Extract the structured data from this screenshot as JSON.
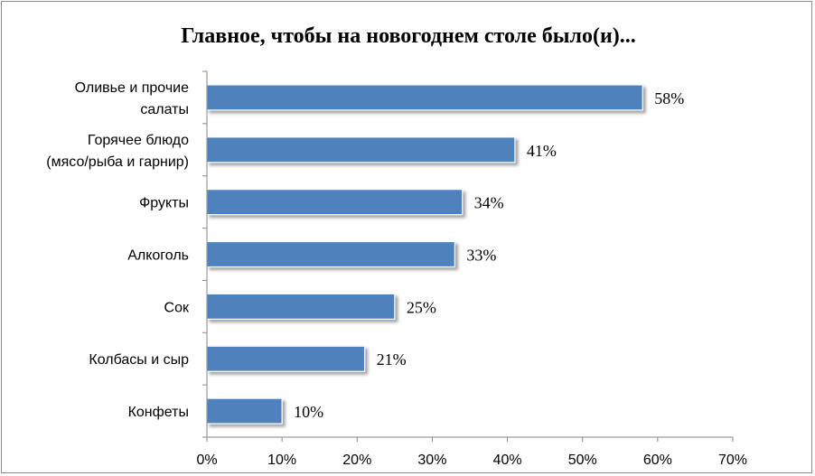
{
  "chart_data": {
    "type": "bar",
    "orientation": "horizontal",
    "title": "Главное, чтобы на новогоднем столе было(и)...",
    "categories": [
      [
        "Оливье и прочие",
        "салаты"
      ],
      [
        "Горячее блюдо",
        "(мясо/рыба и гарнир)"
      ],
      [
        "Фрукты"
      ],
      [
        "Алкоголь"
      ],
      [
        "Сок"
      ],
      [
        "Колбасы и сыр"
      ],
      [
        "Конфеты"
      ]
    ],
    "values": [
      58,
      41,
      34,
      33,
      25,
      21,
      10
    ],
    "data_labels": [
      "58%",
      "41%",
      "34%",
      "33%",
      "25%",
      "21%",
      "10%"
    ],
    "xlim": [
      0,
      70
    ],
    "x_ticks": [
      0,
      10,
      20,
      30,
      40,
      50,
      60,
      70
    ],
    "x_tick_labels": [
      "0%",
      "10%",
      "20%",
      "30%",
      "40%",
      "50%",
      "60%",
      "70%"
    ],
    "grid": false,
    "legend": "none",
    "colors": {
      "bar_fill": "#4f81bd",
      "bar_stroke": "#ffffff",
      "bar_shadow": "#9a9a9a",
      "axis": "#868686",
      "frame": "#8c8c8c"
    }
  }
}
